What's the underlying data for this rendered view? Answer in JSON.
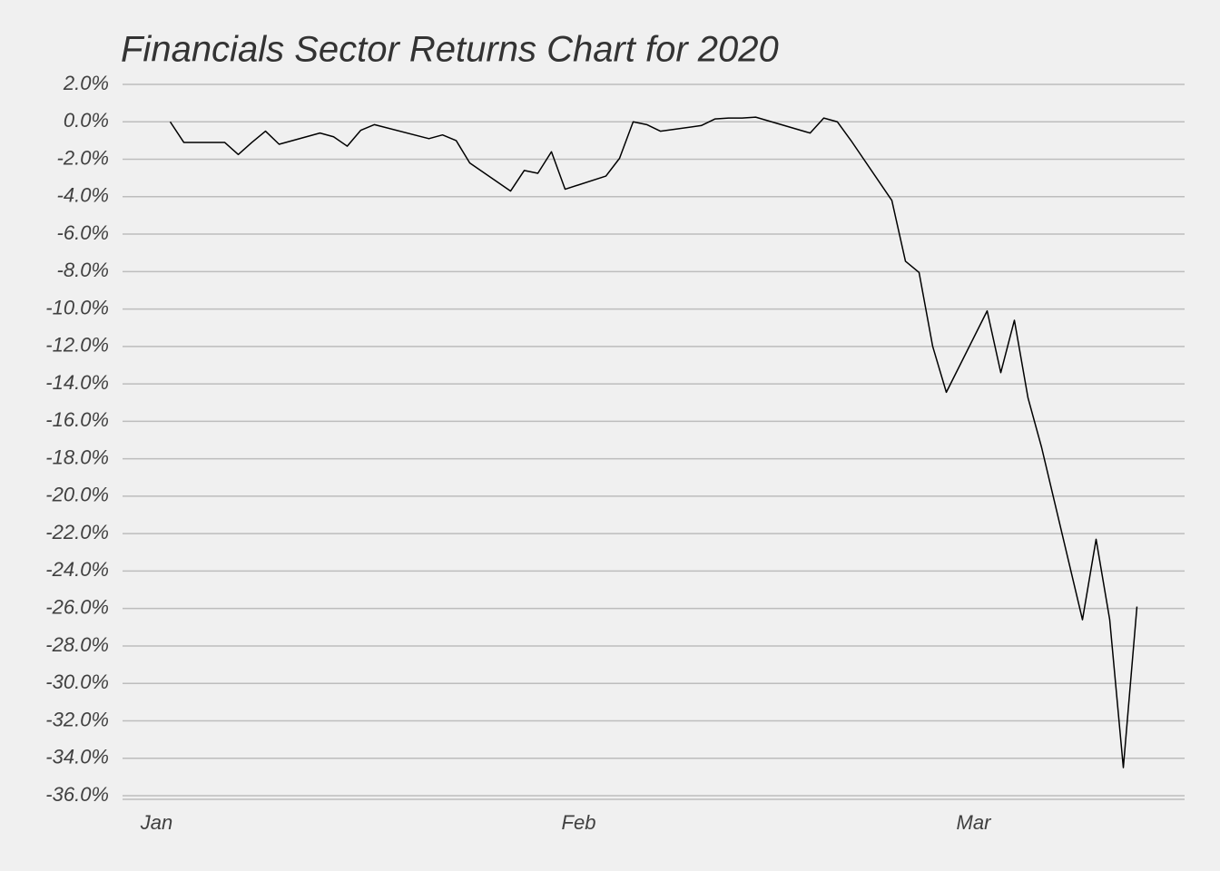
{
  "chart_data": {
    "type": "line",
    "title": "Financials Sector Returns Chart for 2020",
    "x": [
      2,
      3,
      6,
      7,
      8,
      9,
      10,
      13,
      14,
      15,
      16,
      17,
      21,
      22,
      23,
      24,
      27,
      28,
      29,
      30,
      31,
      34,
      35,
      36,
      37,
      38,
      41,
      42,
      43,
      44,
      45,
      49,
      50,
      51,
      52,
      55,
      56,
      57,
      58,
      59,
      62,
      63,
      64,
      65,
      66,
      69,
      70,
      71,
      72,
      73
    ],
    "series": [
      {
        "color": "#000000",
        "values": [
          0,
          -1.1,
          -1.1,
          -1.75,
          -1.1,
          -0.5,
          -1.2,
          -0.6,
          -0.8,
          -1.3,
          -0.45,
          -0.15,
          -0.9,
          -0.7,
          -1.0,
          -2.2,
          -3.7,
          -2.6,
          -2.75,
          -1.6,
          -3.6,
          -2.9,
          -1.95,
          0.0,
          -0.15,
          -0.5,
          -0.2,
          0.15,
          0.2,
          0.2,
          0.25,
          -0.6,
          0.2,
          0.0,
          -1.0,
          -4.2,
          -7.45,
          -8.05,
          -12.0,
          -14.45,
          -10.1,
          -13.4,
          -10.6,
          -14.75,
          -17.4,
          -26.6,
          -22.3,
          -26.6,
          -34.5,
          -25.9
        ]
      }
    ],
    "xlim": [
      -1.5,
      76.5
    ],
    "xticks": [
      {
        "value": 1,
        "label": "Jan"
      },
      {
        "value": 32,
        "label": "Feb"
      },
      {
        "value": 61,
        "label": "Mar"
      }
    ],
    "ylim": [
      -36,
      2
    ],
    "yticks": [
      {
        "value": 2,
        "label": "2.0%"
      },
      {
        "value": 0,
        "label": "0.0%"
      },
      {
        "value": -2,
        "label": "-2.0%"
      },
      {
        "value": -4,
        "label": "-4.0%"
      },
      {
        "value": -6,
        "label": "-6.0%"
      },
      {
        "value": -8,
        "label": "-8.0%"
      },
      {
        "value": -10,
        "label": "-10.0%"
      },
      {
        "value": -12,
        "label": "-12.0%"
      },
      {
        "value": -14,
        "label": "-14.0%"
      },
      {
        "value": -16,
        "label": "-16.0%"
      },
      {
        "value": -18,
        "label": "-18.0%"
      },
      {
        "value": -20,
        "label": "-20.0%"
      },
      {
        "value": -22,
        "label": "-22.0%"
      },
      {
        "value": -24,
        "label": "-24.0%"
      },
      {
        "value": -26,
        "label": "-26.0%"
      },
      {
        "value": -28,
        "label": "-28.0%"
      },
      {
        "value": -30,
        "label": "-30.0%"
      },
      {
        "value": -32,
        "label": "-32.0%"
      },
      {
        "value": -34,
        "label": "-34.0%"
      },
      {
        "value": -36,
        "label": "-36.0%"
      }
    ],
    "grid": true
  }
}
